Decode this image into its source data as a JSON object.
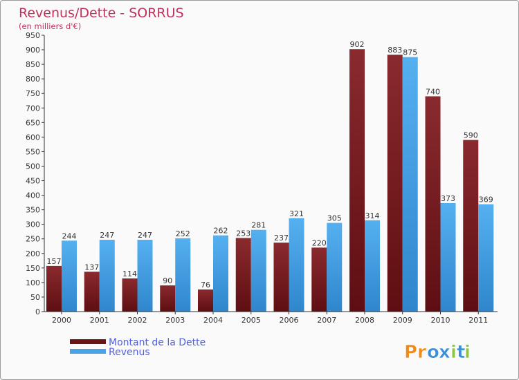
{
  "chart_data": {
    "type": "bar",
    "title": "Revenus/Dette - SORRUS",
    "subtitle": "(en milliers d'€)",
    "categories": [
      "2000",
      "2001",
      "2002",
      "2003",
      "2004",
      "2005",
      "2006",
      "2007",
      "2008",
      "2009",
      "2010",
      "2011"
    ],
    "series": [
      {
        "name": "Montant de la Dette",
        "color": "#7a1e22",
        "values": [
          157,
          137,
          114,
          90,
          76,
          253,
          237,
          220,
          902,
          883,
          740,
          590
        ]
      },
      {
        "name": "Revenus",
        "color": "#4aa3e6",
        "values": [
          244,
          247,
          247,
          252,
          262,
          281,
          321,
          305,
          314,
          875,
          373,
          369
        ]
      }
    ],
    "ylim": [
      0,
      950
    ],
    "yticks": [
      0,
      50,
      100,
      150,
      200,
      250,
      300,
      350,
      400,
      450,
      500,
      550,
      600,
      650,
      700,
      750,
      800,
      850,
      900,
      950
    ],
    "grid": false,
    "legend_position": "bottom-left"
  },
  "brand": {
    "text": "Proxiti",
    "letters": [
      "P",
      "r",
      "o",
      "x",
      "i",
      "t",
      "i"
    ],
    "colors": [
      "#f08a1c",
      "#f08a1c",
      "#3a8fd8",
      "#3a8fd8",
      "#8cc63f",
      "#3a8fd8",
      "#8cc63f"
    ]
  }
}
